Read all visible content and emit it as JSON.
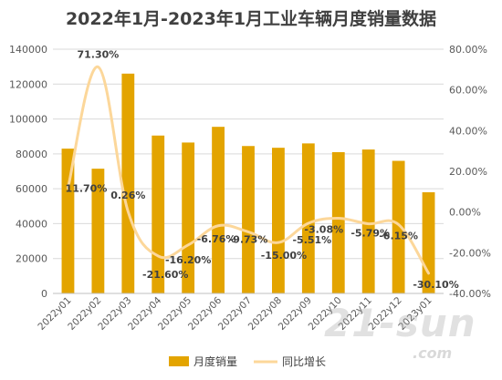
{
  "chart_data": {
    "type": "bar",
    "title": "2022年1月-2023年1月工业车辆月度销量数据",
    "categories": [
      "2022y01",
      "2022y02",
      "2022y03",
      "2022y04",
      "2022y05",
      "2022y06",
      "2022y07",
      "2022y08",
      "2022y09",
      "2022y10",
      "2022y11",
      "2022y12",
      "2023y01"
    ],
    "series": [
      {
        "name": "月度销量",
        "type": "bar",
        "axis": "left",
        "color": "#E3A400",
        "values": [
          83000,
          71500,
          126000,
          90500,
          86500,
          95500,
          84500,
          83500,
          86000,
          81000,
          82500,
          76000,
          58000
        ]
      },
      {
        "name": "同比增长",
        "type": "line",
        "axis": "right",
        "color": "#FCD79A",
        "values": [
          11.7,
          71.3,
          0.26,
          -21.6,
          -16.2,
          -6.76,
          -9.73,
          -15.0,
          -5.51,
          -3.08,
          -5.79,
          -6.15,
          -30.1
        ]
      }
    ],
    "data_labels": [
      "11.70%",
      "71.30%",
      "0.26%",
      "-21.60%",
      "-16.20%",
      "-6.76%",
      "-9.73%",
      "-15.00%",
      "-5.51%",
      "-3.08%",
      "-5.79%",
      "-6.15%",
      "-30.10%"
    ],
    "y_left": {
      "min": 0,
      "max": 140000,
      "ticks": [
        "0",
        "20000",
        "40000",
        "60000",
        "80000",
        "100000",
        "120000",
        "140000"
      ]
    },
    "y_right": {
      "min": -40,
      "max": 80,
      "ticks": [
        "-40.00%",
        "-20.00%",
        "0.00%",
        "20.00%",
        "40.00%",
        "60.00%",
        "80.00%"
      ]
    },
    "legend": {
      "position": "bottom"
    },
    "grid": true
  },
  "watermark": {
    "main": "21-sun",
    "sub": ".com"
  }
}
